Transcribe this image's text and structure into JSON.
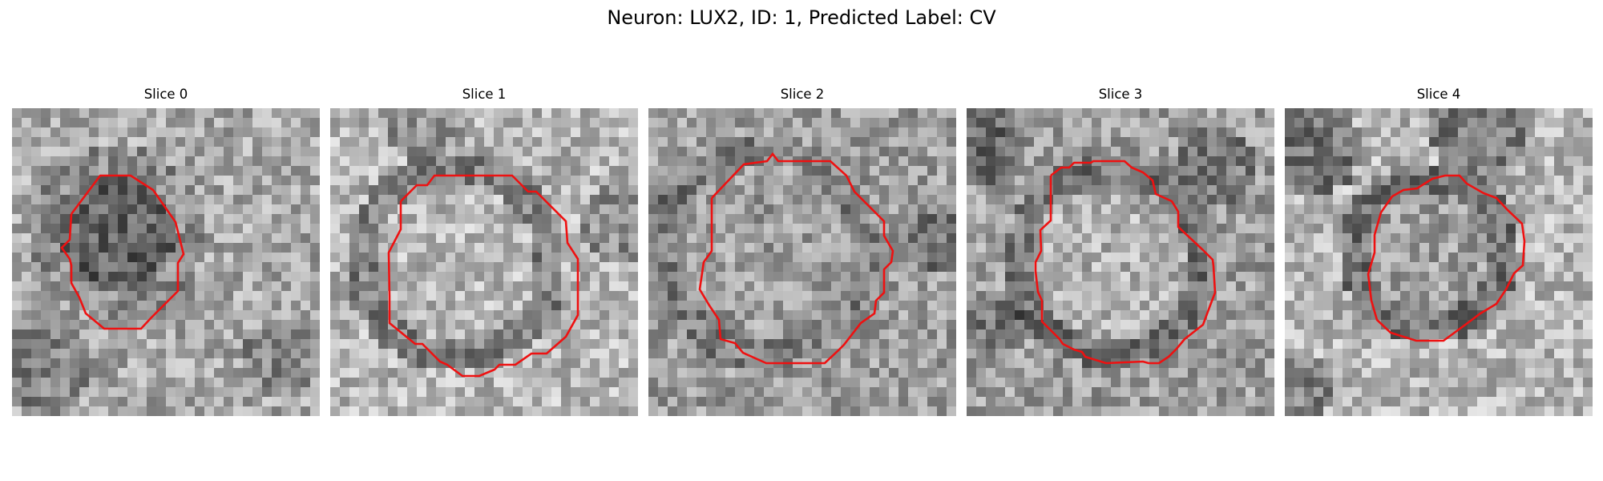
{
  "figure": {
    "title": "Neuron: LUX2, ID: 1, Predicted Label: CV"
  },
  "slices": [
    {
      "title": "Slice 0"
    },
    {
      "title": "Slice 1"
    },
    {
      "title": "Slice 2"
    },
    {
      "title": "Slice 3"
    },
    {
      "title": "Slice 4"
    }
  ],
  "colors": {
    "contour": "#ee1111",
    "background": "#ffffff"
  }
}
